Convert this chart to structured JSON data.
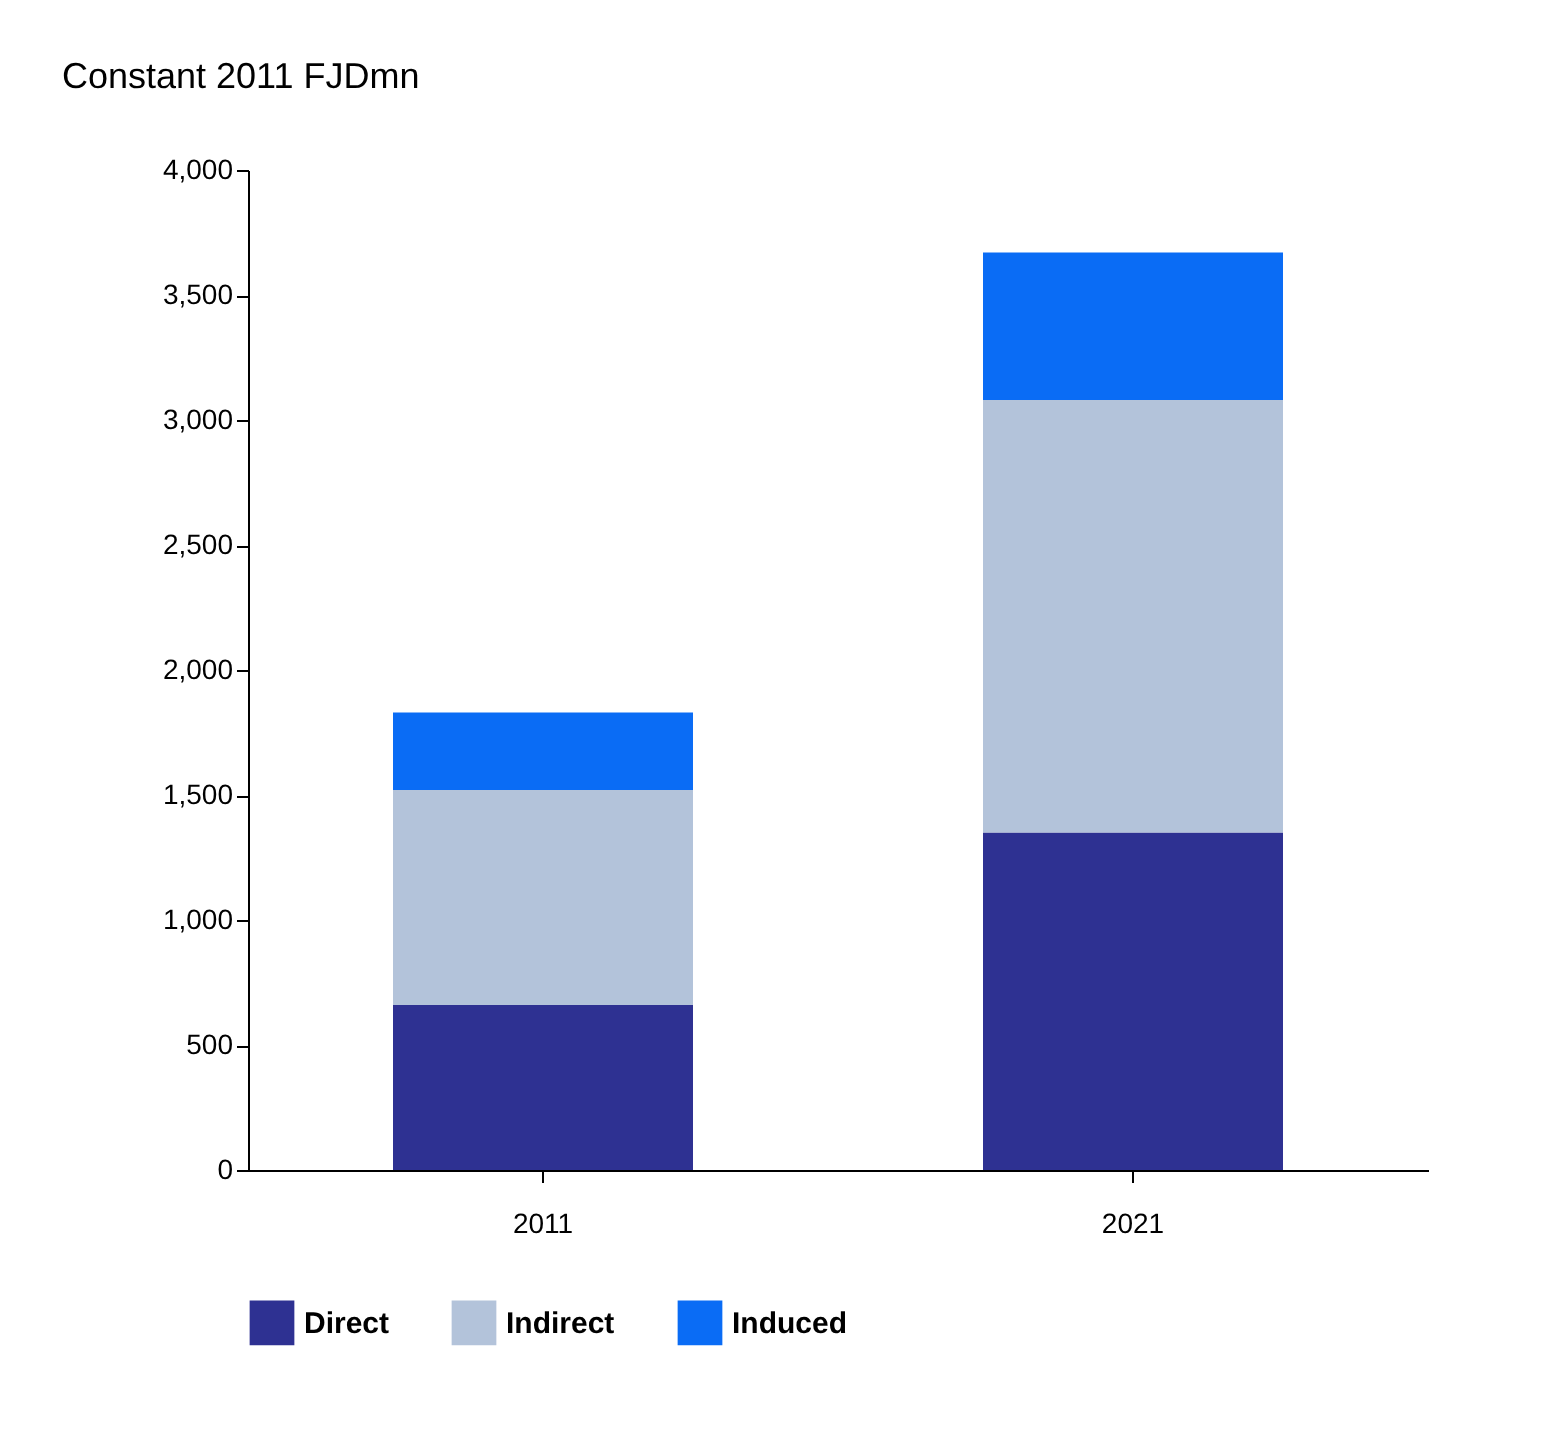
{
  "chart_data": {
    "type": "bar",
    "title": "Constant 2011 FJDmn",
    "categories": [
      "2011",
      "2021"
    ],
    "stacked": true,
    "series": [
      {
        "name": "Direct",
        "color": "#2e3192",
        "values": [
          660,
          1350
        ]
      },
      {
        "name": "Indirect",
        "color": "#b3c3da",
        "values": [
          860,
          1730
        ]
      },
      {
        "name": "Induced",
        "color": "#0a6cf5",
        "values": [
          310,
          590
        ]
      }
    ],
    "ylim": [
      0,
      4000
    ],
    "yticks": [
      0,
      500,
      {
        "value": 1000,
        "label": "1,000"
      },
      {
        "value": 1500,
        "label": "1,500"
      },
      {
        "value": 2000,
        "label": "2,000"
      },
      {
        "value": 2500,
        "label": "2,500"
      },
      {
        "value": 3000,
        "label": "3,000"
      },
      {
        "value": 3500,
        "label": "3,500"
      },
      {
        "value": 4000,
        "label": "4,000"
      }
    ],
    "grid": false,
    "legend": "bottom"
  }
}
